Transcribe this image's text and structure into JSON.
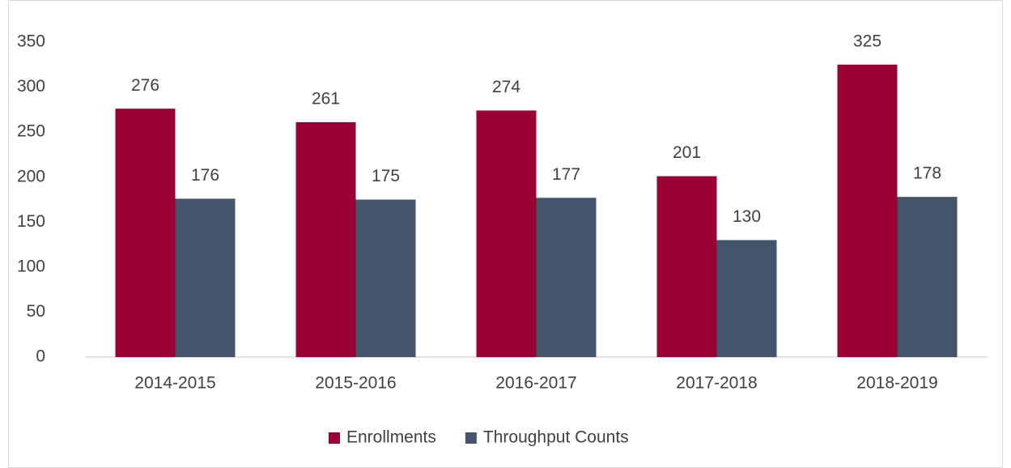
{
  "chart_data": {
    "type": "bar",
    "categories": [
      "2014-2015",
      "2015-2016",
      "2016-2017",
      "2017-2018",
      "2018-2019"
    ],
    "series": [
      {
        "name": "Enrollments",
        "color": "#990033",
        "values": [
          276,
          261,
          274,
          201,
          325
        ]
      },
      {
        "name": "Throughput Counts",
        "color": "#44546a",
        "values": [
          176,
          175,
          177,
          130,
          178
        ]
      }
    ],
    "ylim": [
      0,
      350
    ],
    "yticks": [
      0,
      50,
      100,
      150,
      200,
      250,
      300,
      350
    ],
    "grid": false,
    "legend": "bottom"
  }
}
